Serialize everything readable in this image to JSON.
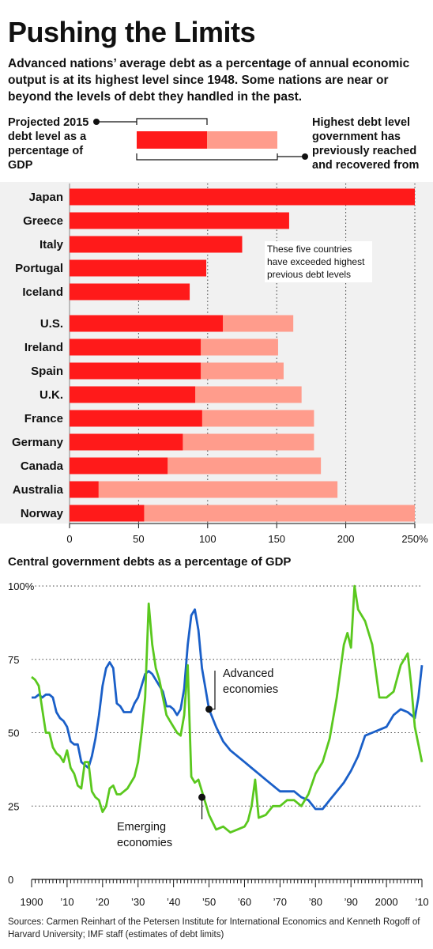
{
  "header": {
    "title": "Pushing the Limits",
    "subtitle": "Advanced nations’ average debt as a percentage of annual economic output is at its highest level since 1948. Some nations are near or beyond the levels of debt they handled in the past."
  },
  "legend": {
    "left": "Projected 2015 debt level as a percentage of GDP",
    "right": "Highest debt level government has previously reached and recovered from",
    "projected_color": "#ff1a1a",
    "highest_color": "#ff9c8c"
  },
  "bar_note": "These five countries have exceeded highest previous debt levels",
  "line_chart_title": "Central government debts as a percentage of GDP",
  "sources": "Sources: Carmen Reinhart of the Petersen Institute for International Economics and Kenneth Rogoff of Harvard University; IMF staff (estimates of debt limits)",
  "chart_data": [
    {
      "type": "bar",
      "orientation": "horizontal",
      "categories": [
        "Japan",
        "Greece",
        "Italy",
        "Portugal",
        "Iceland",
        "U.S.",
        "Ireland",
        "Spain",
        "U.K.",
        "France",
        "Germany",
        "Canada",
        "Australia",
        "Norway"
      ],
      "series": [
        {
          "name": "Projected 2015 debt level as a percentage of GDP",
          "values": [
            250,
            159,
            125,
            99,
            87,
            111,
            95,
            95,
            91,
            96,
            82,
            71,
            21,
            54
          ]
        },
        {
          "name": "Highest debt level government has previously reached and recovered from",
          "values": [
            null,
            null,
            null,
            null,
            null,
            162,
            151,
            155,
            168,
            177,
            177,
            182,
            194,
            250
          ]
        }
      ],
      "xticks": [
        "0",
        "50",
        "100",
        "150",
        "200",
        "250%"
      ],
      "xlim": [
        0,
        250
      ],
      "grid": "vertical dotted"
    },
    {
      "type": "line",
      "title": "Central government debts as a percentage of GDP",
      "yticks": [
        "0",
        "25",
        "50",
        "75",
        "100%"
      ],
      "ylim": [
        0,
        100
      ],
      "xticks": [
        "1900",
        "’10",
        "’20",
        "’30",
        "’40",
        "’50",
        "’60",
        "’70",
        "’80",
        "’90",
        "2000",
        "’10"
      ],
      "xlim": [
        1900,
        2010
      ],
      "grid": "horizontal dotted",
      "series": [
        {
          "name": "Advanced economies",
          "color": "#1a5fc8",
          "x": [
            1900,
            1901,
            1902,
            1903,
            1904,
            1905,
            1906,
            1907,
            1908,
            1909,
            1910,
            1911,
            1912,
            1913,
            1914,
            1915,
            1916,
            1917,
            1918,
            1919,
            1920,
            1921,
            1922,
            1923,
            1924,
            1925,
            1926,
            1927,
            1928,
            1929,
            1930,
            1931,
            1932,
            1933,
            1934,
            1935,
            1936,
            1937,
            1938,
            1939,
            1940,
            1941,
            1942,
            1943,
            1944,
            1945,
            1946,
            1947,
            1948,
            1949,
            1950,
            1952,
            1954,
            1956,
            1958,
            1960,
            1962,
            1964,
            1966,
            1968,
            1970,
            1972,
            1974,
            1976,
            1978,
            1980,
            1982,
            1984,
            1986,
            1988,
            1990,
            1992,
            1994,
            1996,
            1998,
            2000,
            2002,
            2004,
            2006,
            2007,
            2008,
            2009,
            2010
          ],
          "y": [
            62,
            62,
            63,
            62,
            63,
            63,
            62,
            57,
            55,
            54,
            52,
            47,
            46,
            46,
            40,
            39,
            38,
            42,
            48,
            56,
            66,
            72,
            74,
            72,
            60,
            59,
            57,
            57,
            57,
            60,
            62,
            66,
            70,
            71,
            70,
            68,
            66,
            64,
            59,
            59,
            58,
            56,
            58,
            65,
            80,
            90,
            92,
            85,
            72,
            65,
            58,
            52,
            47,
            44,
            42,
            40,
            38,
            36,
            34,
            32,
            30,
            30,
            30,
            28,
            27,
            24,
            24,
            27,
            30,
            33,
            37,
            42,
            49,
            50,
            51,
            52,
            56,
            58,
            57,
            56,
            55,
            62,
            73
          ]
        },
        {
          "name": "Emerging economies",
          "color": "#5ac81e",
          "x": [
            1900,
            1901,
            1902,
            1903,
            1904,
            1905,
            1906,
            1907,
            1908,
            1909,
            1910,
            1911,
            1912,
            1913,
            1914,
            1915,
            1916,
            1917,
            1918,
            1919,
            1920,
            1921,
            1922,
            1923,
            1924,
            1925,
            1926,
            1927,
            1928,
            1929,
            1930,
            1931,
            1932,
            1933,
            1934,
            1935,
            1936,
            1937,
            1938,
            1939,
            1940,
            1941,
            1942,
            1943,
            1944,
            1945,
            1946,
            1947,
            1948,
            1949,
            1950,
            1952,
            1954,
            1956,
            1958,
            1960,
            1961,
            1962,
            1963,
            1964,
            1966,
            1968,
            1970,
            1972,
            1974,
            1976,
            1978,
            1980,
            1982,
            1984,
            1986,
            1988,
            1989,
            1990,
            1991,
            1992,
            1994,
            1996,
            1998,
            2000,
            2002,
            2004,
            2006,
            2007,
            2008,
            2009,
            2010
          ],
          "y": [
            69,
            68,
            66,
            58,
            50,
            50,
            45,
            43,
            42,
            40,
            44,
            38,
            36,
            32,
            31,
            40,
            40,
            30,
            28,
            27,
            23,
            25,
            31,
            32,
            29,
            29,
            30,
            31,
            33,
            35,
            40,
            50,
            62,
            94,
            80,
            72,
            68,
            62,
            56,
            54,
            52,
            50,
            49,
            56,
            73,
            35,
            33,
            34,
            30,
            26,
            22,
            17,
            18,
            16,
            17,
            18,
            20,
            25,
            34,
            21,
            22,
            25,
            25,
            27,
            27,
            25,
            29,
            36,
            40,
            48,
            62,
            80,
            84,
            79,
            100,
            92,
            88,
            80,
            62,
            62,
            64,
            73,
            77,
            66,
            52,
            46,
            40
          ]
        }
      ],
      "annotations": [
        "Advanced economies",
        "Emerging economies"
      ]
    }
  ]
}
